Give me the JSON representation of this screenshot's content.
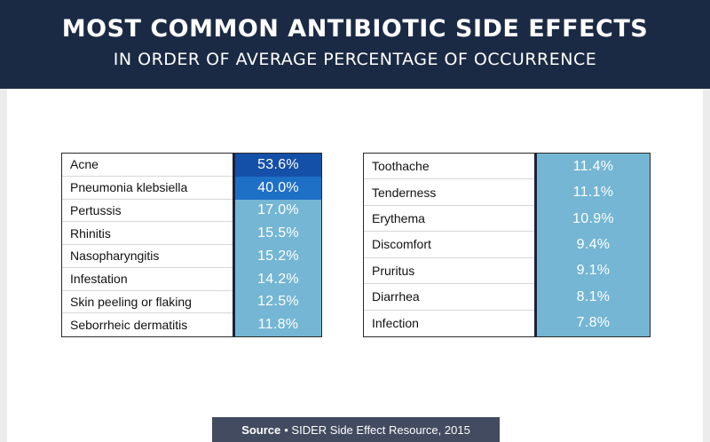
{
  "header": {
    "title": "MOST COMMON ANTIBIOTIC SIDE EFFECTS",
    "subtitle": "IN ORDER OF AVERAGE PERCENTAGE OF OCCURRENCE"
  },
  "source": {
    "label": "Source",
    "text": "• SIDER Side Effect Resource, 2015"
  },
  "colors": {
    "header_bg": "#1b2a44",
    "value_high": "#1550a8",
    "value_mid": "#1e6fc6",
    "value_low": "#74b6d3",
    "divider": "#1b2238",
    "source_bg": "#424b5f"
  },
  "chart_data": {
    "type": "table",
    "title": "MOST COMMON ANTIBIOTIC SIDE EFFECTS",
    "subtitle": "IN ORDER OF AVERAGE PERCENTAGE OF OCCURRENCE",
    "tables": [
      {
        "rows": [
          {
            "label": "Acne",
            "value": 53.6,
            "display": "53.6%"
          },
          {
            "label": "Pneumonia klebsiella",
            "value": 40.0,
            "display": "40.0%"
          },
          {
            "label": "Pertussis",
            "value": 17.0,
            "display": "17.0%"
          },
          {
            "label": "Rhinitis",
            "value": 15.5,
            "display": "15.5%"
          },
          {
            "label": "Nasopharyngitis",
            "value": 15.2,
            "display": "15.2%"
          },
          {
            "label": "Infestation",
            "value": 14.2,
            "display": "14.2%"
          },
          {
            "label": "Skin peeling or flaking",
            "value": 12.5,
            "display": "12.5%"
          },
          {
            "label": "Seborrheic dermatitis",
            "value": 11.8,
            "display": "11.8%"
          }
        ]
      },
      {
        "rows": [
          {
            "label": "Toothache",
            "value": 11.4,
            "display": "11.4%"
          },
          {
            "label": "Tenderness",
            "value": 11.1,
            "display": "11.1%"
          },
          {
            "label": "Erythema",
            "value": 10.9,
            "display": "10.9%"
          },
          {
            "label": "Discomfort",
            "value": 9.4,
            "display": "9.4%"
          },
          {
            "label": "Pruritus",
            "value": 9.1,
            "display": "9.1%"
          },
          {
            "label": "Diarrhea",
            "value": 8.1,
            "display": "8.1%"
          },
          {
            "label": "Infection",
            "value": 7.8,
            "display": "7.8%"
          }
        ]
      }
    ]
  }
}
